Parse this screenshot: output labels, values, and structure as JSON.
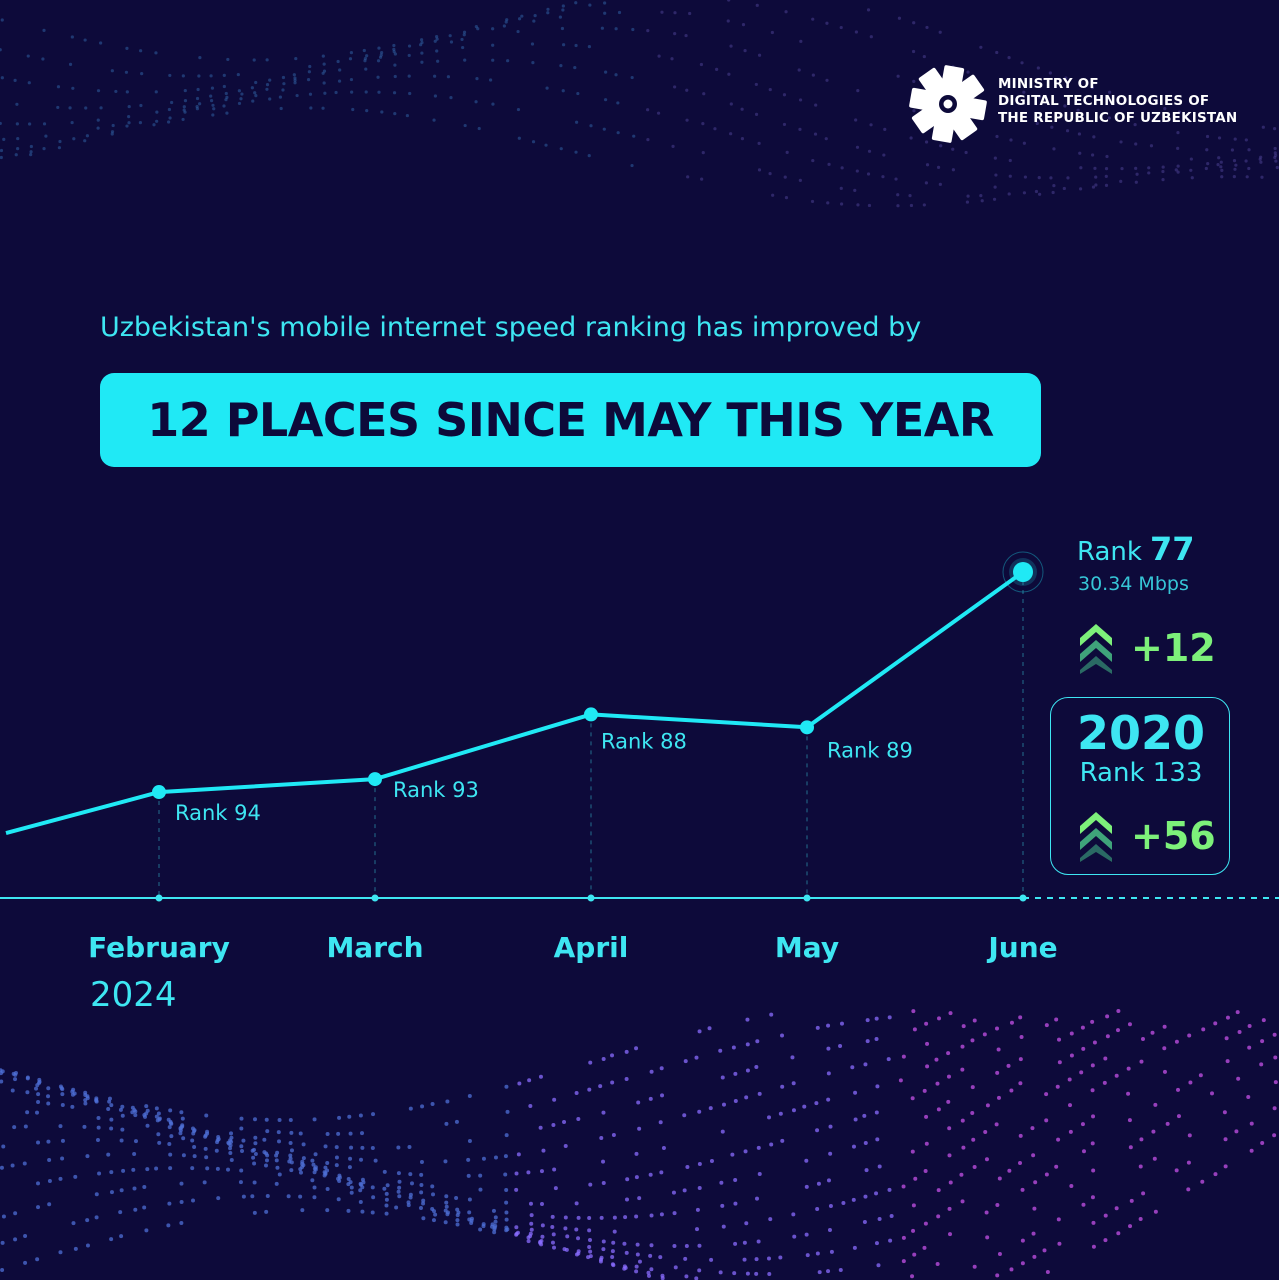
{
  "org": {
    "line1": "MINISTRY OF",
    "line2": "DIGITAL TECHNOLOGIES OF",
    "line3": "THE REPUBLIC OF UZBEKISTAN"
  },
  "headline": {
    "subtitle": "Uzbekistan's mobile internet speed ranking has improved by",
    "highlight": "12 PLACES SINCE MAY THIS YEAR"
  },
  "latest": {
    "label": "Rank",
    "rank": "77",
    "speed": "30.34 Mbps",
    "delta": "+12"
  },
  "baseline": {
    "year": "2020",
    "rank_label": "Rank 133",
    "delta": "+56"
  },
  "colors": {
    "background": "#0d0a3a",
    "accent": "#20e9f5",
    "positive": "#7df07a"
  },
  "chart_data": {
    "type": "line",
    "categories": [
      "February",
      "March",
      "April",
      "May",
      "June"
    ],
    "year_label": "2024",
    "values": [
      94,
      93,
      88,
      89,
      77
    ],
    "point_labels": [
      "Rank 94",
      "Rank 93",
      "Rank 88",
      "Rank 89",
      ""
    ],
    "yaxis_inverted": true,
    "grid": false
  }
}
